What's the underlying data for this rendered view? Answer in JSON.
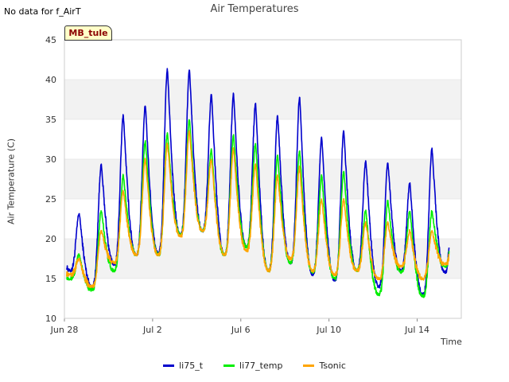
{
  "header": {
    "no_data_note": "No data for f_AirT",
    "site_label": "MB_tule"
  },
  "chart_data": {
    "type": "line",
    "title": "Air Temperatures",
    "xlabel": "Time",
    "ylabel": "Air Temperature (C)",
    "ylim": [
      10,
      45
    ],
    "yticks": [
      10,
      15,
      20,
      25,
      30,
      35,
      40,
      45
    ],
    "xlim": [
      "2023-06-28",
      "2023-07-16"
    ],
    "xticks": [
      {
        "date": "2023-06-28",
        "label": "Jun 28"
      },
      {
        "date": "2023-07-02",
        "label": "Jul 2"
      },
      {
        "date": "2023-07-06",
        "label": "Jul 6"
      },
      {
        "date": "2023-07-10",
        "label": "Jul 10"
      },
      {
        "date": "2023-07-14",
        "label": "Jul 14"
      }
    ],
    "grid": "alternating horizontal bands",
    "legend_position": "bottom",
    "series": [
      {
        "name": "li75_t",
        "color": "#0000cc",
        "daily_min": [
          {
            "date": "2023-06-28",
            "value": 16.0
          },
          {
            "date": "2023-06-29",
            "value": 14.0
          },
          {
            "date": "2023-06-30",
            "value": 16.8
          },
          {
            "date": "2023-07-01",
            "value": 18.0
          },
          {
            "date": "2023-07-02",
            "value": 18.2
          },
          {
            "date": "2023-07-03",
            "value": 20.5
          },
          {
            "date": "2023-07-04",
            "value": 21.0
          },
          {
            "date": "2023-07-05",
            "value": 18.0
          },
          {
            "date": "2023-07-06",
            "value": 19.0
          },
          {
            "date": "2023-07-07",
            "value": 16.0
          },
          {
            "date": "2023-07-08",
            "value": 17.0
          },
          {
            "date": "2023-07-09",
            "value": 15.5
          },
          {
            "date": "2023-07-10",
            "value": 14.8
          },
          {
            "date": "2023-07-11",
            "value": 16.0
          },
          {
            "date": "2023-07-12",
            "value": 14.0
          },
          {
            "date": "2023-07-13",
            "value": 16.0
          },
          {
            "date": "2023-07-14",
            "value": 13.0
          },
          {
            "date": "2023-07-15",
            "value": 15.8
          }
        ],
        "daily_max": [
          {
            "date": "2023-06-28",
            "value": 23.2
          },
          {
            "date": "2023-06-29",
            "value": 29.3
          },
          {
            "date": "2023-06-30",
            "value": 35.5
          },
          {
            "date": "2023-07-01",
            "value": 36.8
          },
          {
            "date": "2023-07-02",
            "value": 41.3
          },
          {
            "date": "2023-07-03",
            "value": 41.2
          },
          {
            "date": "2023-07-04",
            "value": 38.2
          },
          {
            "date": "2023-07-05",
            "value": 38.2
          },
          {
            "date": "2023-07-06",
            "value": 37.0
          },
          {
            "date": "2023-07-07",
            "value": 35.5
          },
          {
            "date": "2023-07-08",
            "value": 37.8
          },
          {
            "date": "2023-07-09",
            "value": 32.7
          },
          {
            "date": "2023-07-10",
            "value": 33.6
          },
          {
            "date": "2023-07-11",
            "value": 29.8
          },
          {
            "date": "2023-07-12",
            "value": 29.5
          },
          {
            "date": "2023-07-13",
            "value": 27.0
          },
          {
            "date": "2023-07-14",
            "value": 31.4
          }
        ]
      },
      {
        "name": "li77_temp",
        "color": "#00ee00",
        "daily_min": [
          {
            "date": "2023-06-28",
            "value": 15.0
          },
          {
            "date": "2023-06-29",
            "value": 13.6
          },
          {
            "date": "2023-06-30",
            "value": 16.0
          },
          {
            "date": "2023-07-01",
            "value": 18.0
          },
          {
            "date": "2023-07-02",
            "value": 18.0
          },
          {
            "date": "2023-07-03",
            "value": 20.5
          },
          {
            "date": "2023-07-04",
            "value": 21.0
          },
          {
            "date": "2023-07-05",
            "value": 18.0
          },
          {
            "date": "2023-07-06",
            "value": 19.0
          },
          {
            "date": "2023-07-07",
            "value": 16.0
          },
          {
            "date": "2023-07-08",
            "value": 17.0
          },
          {
            "date": "2023-07-09",
            "value": 15.8
          },
          {
            "date": "2023-07-10",
            "value": 15.0
          },
          {
            "date": "2023-07-11",
            "value": 16.0
          },
          {
            "date": "2023-07-12",
            "value": 13.0
          },
          {
            "date": "2023-07-13",
            "value": 15.8
          },
          {
            "date": "2023-07-14",
            "value": 12.8
          },
          {
            "date": "2023-07-15",
            "value": 16.5
          }
        ],
        "daily_max": [
          {
            "date": "2023-06-28",
            "value": 18.0
          },
          {
            "date": "2023-06-29",
            "value": 23.5
          },
          {
            "date": "2023-06-30",
            "value": 28.0
          },
          {
            "date": "2023-07-01",
            "value": 32.3
          },
          {
            "date": "2023-07-02",
            "value": 33.3
          },
          {
            "date": "2023-07-03",
            "value": 35.0
          },
          {
            "date": "2023-07-04",
            "value": 31.2
          },
          {
            "date": "2023-07-05",
            "value": 33.0
          },
          {
            "date": "2023-07-06",
            "value": 32.0
          },
          {
            "date": "2023-07-07",
            "value": 30.5
          },
          {
            "date": "2023-07-08",
            "value": 31.0
          },
          {
            "date": "2023-07-09",
            "value": 28.0
          },
          {
            "date": "2023-07-10",
            "value": 28.5
          },
          {
            "date": "2023-07-11",
            "value": 23.5
          },
          {
            "date": "2023-07-12",
            "value": 24.8
          },
          {
            "date": "2023-07-13",
            "value": 23.5
          },
          {
            "date": "2023-07-14",
            "value": 23.5
          }
        ]
      },
      {
        "name": "Tsonic",
        "color": "#ffa500",
        "daily_min": [
          {
            "date": "2023-06-28",
            "value": 15.5
          },
          {
            "date": "2023-06-29",
            "value": 14.0
          },
          {
            "date": "2023-06-30",
            "value": 17.0
          },
          {
            "date": "2023-07-01",
            "value": 18.0
          },
          {
            "date": "2023-07-02",
            "value": 18.0
          },
          {
            "date": "2023-07-03",
            "value": 20.3
          },
          {
            "date": "2023-07-04",
            "value": 21.0
          },
          {
            "date": "2023-07-05",
            "value": 18.0
          },
          {
            "date": "2023-07-06",
            "value": 18.5
          },
          {
            "date": "2023-07-07",
            "value": 16.0
          },
          {
            "date": "2023-07-08",
            "value": 17.5
          },
          {
            "date": "2023-07-09",
            "value": 16.0
          },
          {
            "date": "2023-07-10",
            "value": 15.5
          },
          {
            "date": "2023-07-11",
            "value": 16.0
          },
          {
            "date": "2023-07-12",
            "value": 15.0
          },
          {
            "date": "2023-07-13",
            "value": 16.5
          },
          {
            "date": "2023-07-14",
            "value": 15.0
          },
          {
            "date": "2023-07-15",
            "value": 16.8
          }
        ],
        "daily_max": [
          {
            "date": "2023-06-28",
            "value": 17.5
          },
          {
            "date": "2023-06-29",
            "value": 21.0
          },
          {
            "date": "2023-06-30",
            "value": 26.0
          },
          {
            "date": "2023-07-01",
            "value": 30.0
          },
          {
            "date": "2023-07-02",
            "value": 32.0
          },
          {
            "date": "2023-07-03",
            "value": 33.5
          },
          {
            "date": "2023-07-04",
            "value": 30.0
          },
          {
            "date": "2023-07-05",
            "value": 31.3
          },
          {
            "date": "2023-07-06",
            "value": 29.5
          },
          {
            "date": "2023-07-07",
            "value": 28.0
          },
          {
            "date": "2023-07-08",
            "value": 29.0
          },
          {
            "date": "2023-07-09",
            "value": 25.0
          },
          {
            "date": "2023-07-10",
            "value": 25.0
          },
          {
            "date": "2023-07-11",
            "value": 22.0
          },
          {
            "date": "2023-07-12",
            "value": 22.0
          },
          {
            "date": "2023-07-13",
            "value": 21.0
          },
          {
            "date": "2023-07-14",
            "value": 21.0
          }
        ]
      }
    ]
  }
}
